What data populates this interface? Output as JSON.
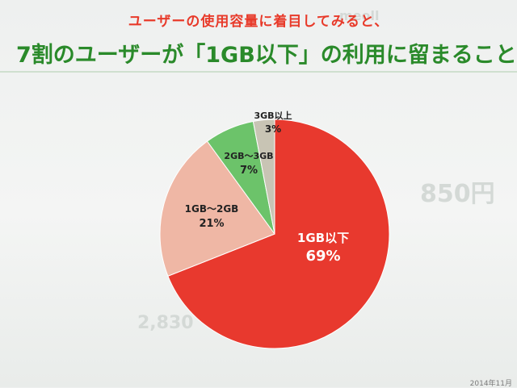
{
  "headline": {
    "subtitle": "ユーザーの使用容量に着目してみると、",
    "title": "7割のユーザーが「1GB以下」の利用に留まることが"
  },
  "footnote": "2014年11月",
  "colors": {
    "title_green": "#2a8a2a",
    "subtitle_red": "#e83a2a",
    "slice_red": "#e8392e",
    "slice_pink": "#efb7a5",
    "slice_green": "#6cc36a",
    "slice_gray": "#c8c4b4"
  },
  "chart_data": {
    "type": "pie",
    "title": "",
    "slices": [
      {
        "label": "1GB以下",
        "value": 69,
        "display": "69%",
        "color": "#e8392e"
      },
      {
        "label": "1GB～2GB",
        "value": 21,
        "display": "21%",
        "color": "#efb7a5"
      },
      {
        "label": "2GB～3GB",
        "value": 7,
        "display": "7%",
        "color": "#6cc36a"
      },
      {
        "label": "3GB以上",
        "value": 3,
        "display": "3%",
        "color": "#c8c4b4"
      }
    ]
  }
}
